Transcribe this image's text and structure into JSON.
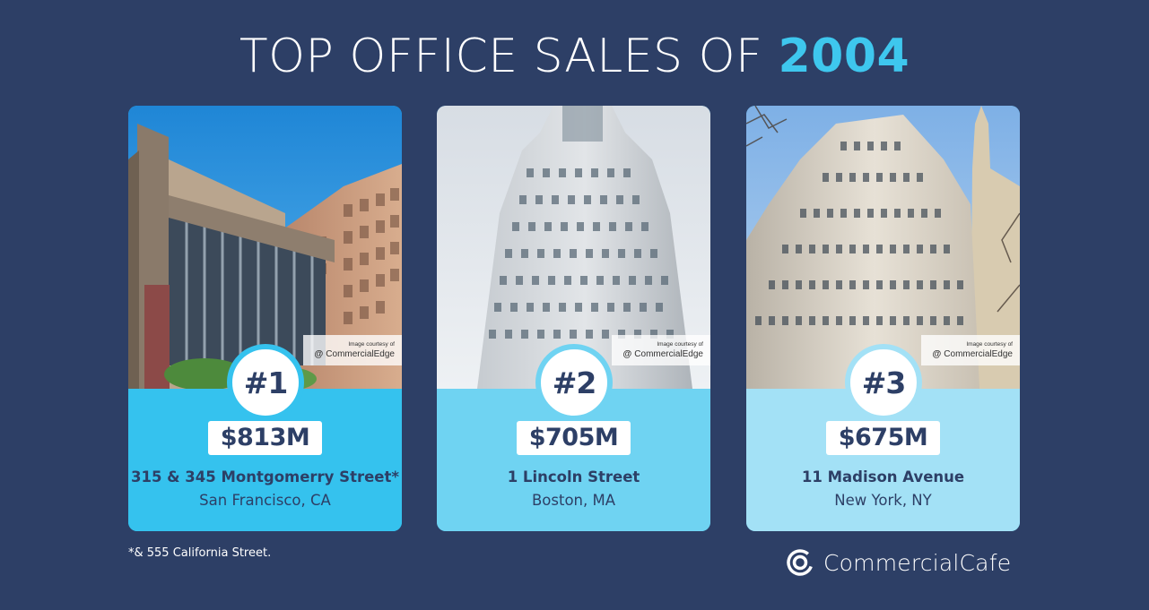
{
  "title": {
    "prefix": "TOP OFFICE SALES OF",
    "year": "2004"
  },
  "courtesy": {
    "line1": "Image courtesy of",
    "brand": "CommercialEdge"
  },
  "cards": [
    {
      "rank": "#1",
      "price": "$813M",
      "address": "315 & 345 Montgomerry Street*",
      "city": "San Francisco, CA"
    },
    {
      "rank": "#2",
      "price": "$705M",
      "address": "1 Lincoln Street",
      "city": "Boston, MA"
    },
    {
      "rank": "#3",
      "price": "$675M",
      "address": "11 Madison Avenue",
      "city": "New York, NY"
    }
  ],
  "footnote": "*& 555 California Street.",
  "logo": {
    "name": "CommercialCafe",
    "icon": "commercialcafe-logo-icon"
  },
  "colors": {
    "background": "#2d3f66",
    "accent": "#3ec7ee",
    "card1_panel": "#35c2ee",
    "card2_panel": "#6fd3f2",
    "card3_panel": "#a3e1f6",
    "text_dark": "#2d3f66"
  }
}
